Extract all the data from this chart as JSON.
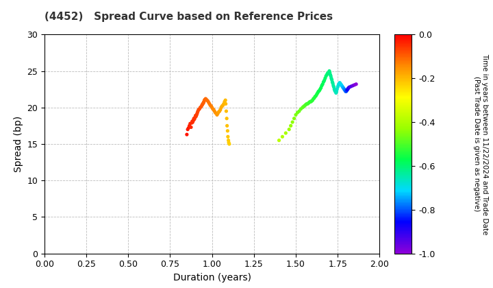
{
  "title": "(4452)   Spread Curve based on Reference Prices",
  "xlabel": "Duration (years)",
  "ylabel": "Spread (bp)",
  "xlim": [
    0.0,
    2.0
  ],
  "ylim": [
    0.0,
    30.0
  ],
  "xticks": [
    0.0,
    0.25,
    0.5,
    0.75,
    1.0,
    1.25,
    1.5,
    1.75,
    2.0
  ],
  "yticks": [
    0,
    5,
    10,
    15,
    20,
    25,
    30
  ],
  "colorbar_label_line1": "Time in years between 11/22/2024 and Trade Date",
  "colorbar_label_line2": "(Past Trade Date is given as negative)",
  "cbar_vmin": -1.0,
  "cbar_vmax": 0.0,
  "cbar_ticks": [
    0.0,
    -0.2,
    -0.4,
    -0.6,
    -0.8,
    -1.0
  ],
  "scatter_data": [
    [
      0.85,
      16.3,
      -0.02
    ],
    [
      0.855,
      17.0,
      -0.025
    ],
    [
      0.86,
      17.2,
      -0.03
    ],
    [
      0.865,
      17.5,
      -0.035
    ],
    [
      0.87,
      17.8,
      -0.04
    ],
    [
      0.875,
      17.3,
      -0.04
    ],
    [
      0.88,
      17.9,
      -0.045
    ],
    [
      0.882,
      18.1,
      -0.046
    ],
    [
      0.885,
      18.0,
      -0.048
    ],
    [
      0.888,
      18.2,
      -0.049
    ],
    [
      0.89,
      18.3,
      -0.05
    ],
    [
      0.892,
      18.5,
      -0.052
    ],
    [
      0.895,
      18.4,
      -0.054
    ],
    [
      0.898,
      18.6,
      -0.056
    ],
    [
      0.9,
      18.7,
      -0.058
    ],
    [
      0.902,
      18.9,
      -0.06
    ],
    [
      0.905,
      18.8,
      -0.062
    ],
    [
      0.908,
      19.0,
      -0.065
    ],
    [
      0.91,
      19.1,
      -0.067
    ],
    [
      0.913,
      19.3,
      -0.069
    ],
    [
      0.916,
      19.5,
      -0.072
    ],
    [
      0.92,
      19.7,
      -0.075
    ],
    [
      0.925,
      19.8,
      -0.078
    ],
    [
      0.93,
      20.0,
      -0.082
    ],
    [
      0.935,
      20.1,
      -0.086
    ],
    [
      0.94,
      20.3,
      -0.09
    ],
    [
      0.942,
      20.4,
      -0.092
    ],
    [
      0.945,
      20.5,
      -0.094
    ],
    [
      0.948,
      20.6,
      -0.096
    ],
    [
      0.95,
      20.7,
      -0.098
    ],
    [
      0.952,
      20.8,
      -0.1
    ],
    [
      0.955,
      21.0,
      -0.102
    ],
    [
      0.958,
      21.1,
      -0.104
    ],
    [
      0.962,
      21.2,
      -0.107
    ],
    [
      0.966,
      21.1,
      -0.11
    ],
    [
      0.97,
      21.0,
      -0.113
    ],
    [
      0.975,
      20.9,
      -0.116
    ],
    [
      0.98,
      20.7,
      -0.12
    ],
    [
      0.985,
      20.5,
      -0.124
    ],
    [
      0.99,
      20.3,
      -0.128
    ],
    [
      0.995,
      20.2,
      -0.132
    ],
    [
      1.0,
      20.0,
      -0.136
    ],
    [
      1.005,
      19.8,
      -0.14
    ],
    [
      1.01,
      19.7,
      -0.144
    ],
    [
      1.015,
      19.5,
      -0.148
    ],
    [
      1.02,
      19.3,
      -0.152
    ],
    [
      1.025,
      19.2,
      -0.156
    ],
    [
      1.03,
      19.0,
      -0.16
    ],
    [
      1.035,
      19.2,
      -0.164
    ],
    [
      1.04,
      19.4,
      -0.168
    ],
    [
      1.045,
      19.5,
      -0.172
    ],
    [
      1.05,
      19.7,
      -0.176
    ],
    [
      1.055,
      20.0,
      -0.18
    ],
    [
      1.06,
      20.2,
      -0.184
    ],
    [
      1.065,
      20.3,
      -0.188
    ],
    [
      1.07,
      20.5,
      -0.192
    ],
    [
      1.075,
      20.8,
      -0.196
    ],
    [
      1.08,
      21.0,
      -0.2
    ],
    [
      1.082,
      20.5,
      -0.202
    ],
    [
      1.085,
      19.5,
      -0.205
    ],
    [
      1.088,
      18.5,
      -0.208
    ],
    [
      1.09,
      17.5,
      -0.21
    ],
    [
      1.093,
      16.8,
      -0.213
    ],
    [
      1.095,
      16.0,
      -0.216
    ],
    [
      1.098,
      15.5,
      -0.22
    ],
    [
      1.1,
      15.2,
      -0.224
    ],
    [
      1.103,
      15.0,
      -0.228
    ],
    [
      1.4,
      15.5,
      -0.38
    ],
    [
      1.42,
      16.0,
      -0.395
    ],
    [
      1.44,
      16.5,
      -0.41
    ],
    [
      1.46,
      17.0,
      -0.425
    ],
    [
      1.47,
      17.5,
      -0.432
    ],
    [
      1.48,
      18.0,
      -0.44
    ],
    [
      1.49,
      18.5,
      -0.448
    ],
    [
      1.5,
      19.0,
      -0.455
    ],
    [
      1.51,
      19.3,
      -0.462
    ],
    [
      1.52,
      19.5,
      -0.47
    ],
    [
      1.53,
      19.8,
      -0.478
    ],
    [
      1.54,
      20.0,
      -0.485
    ],
    [
      1.545,
      20.1,
      -0.488
    ],
    [
      1.55,
      20.2,
      -0.492
    ],
    [
      1.555,
      20.3,
      -0.496
    ],
    [
      1.56,
      20.4,
      -0.5
    ],
    [
      1.565,
      20.5,
      -0.504
    ],
    [
      1.57,
      20.5,
      -0.508
    ],
    [
      1.575,
      20.6,
      -0.512
    ],
    [
      1.58,
      20.7,
      -0.516
    ],
    [
      1.585,
      20.8,
      -0.52
    ],
    [
      1.59,
      20.8,
      -0.524
    ],
    [
      1.595,
      20.9,
      -0.528
    ],
    [
      1.6,
      21.0,
      -0.532
    ],
    [
      1.605,
      21.2,
      -0.536
    ],
    [
      1.61,
      21.3,
      -0.54
    ],
    [
      1.615,
      21.5,
      -0.544
    ],
    [
      1.62,
      21.6,
      -0.548
    ],
    [
      1.625,
      21.8,
      -0.552
    ],
    [
      1.63,
      22.0,
      -0.556
    ],
    [
      1.635,
      22.2,
      -0.56
    ],
    [
      1.64,
      22.3,
      -0.564
    ],
    [
      1.645,
      22.5,
      -0.568
    ],
    [
      1.65,
      22.7,
      -0.572
    ],
    [
      1.655,
      23.0,
      -0.576
    ],
    [
      1.66,
      23.2,
      -0.58
    ],
    [
      1.665,
      23.5,
      -0.584
    ],
    [
      1.67,
      23.7,
      -0.588
    ],
    [
      1.675,
      24.0,
      -0.592
    ],
    [
      1.68,
      24.3,
      -0.596
    ],
    [
      1.685,
      24.5,
      -0.6
    ],
    [
      1.69,
      24.7,
      -0.604
    ],
    [
      1.695,
      24.8,
      -0.608
    ],
    [
      1.7,
      25.0,
      -0.612
    ],
    [
      1.703,
      24.8,
      -0.615
    ],
    [
      1.706,
      24.5,
      -0.618
    ],
    [
      1.709,
      24.3,
      -0.622
    ],
    [
      1.712,
      24.0,
      -0.625
    ],
    [
      1.715,
      23.8,
      -0.628
    ],
    [
      1.718,
      23.5,
      -0.632
    ],
    [
      1.721,
      23.3,
      -0.636
    ],
    [
      1.724,
      23.0,
      -0.64
    ],
    [
      1.727,
      22.8,
      -0.644
    ],
    [
      1.73,
      22.5,
      -0.648
    ],
    [
      1.733,
      22.3,
      -0.652
    ],
    [
      1.736,
      22.2,
      -0.656
    ],
    [
      1.74,
      22.0,
      -0.66
    ],
    [
      1.743,
      22.2,
      -0.664
    ],
    [
      1.746,
      22.5,
      -0.668
    ],
    [
      1.75,
      22.8,
      -0.672
    ],
    [
      1.753,
      23.0,
      -0.676
    ],
    [
      1.756,
      23.2,
      -0.68
    ],
    [
      1.759,
      23.3,
      -0.684
    ],
    [
      1.762,
      23.4,
      -0.688
    ],
    [
      1.765,
      23.3,
      -0.692
    ],
    [
      1.768,
      23.2,
      -0.696
    ],
    [
      1.771,
      23.1,
      -0.7
    ],
    [
      1.774,
      23.0,
      -0.71
    ],
    [
      1.777,
      22.9,
      -0.72
    ],
    [
      1.78,
      22.8,
      -0.73
    ],
    [
      1.783,
      22.7,
      -0.74
    ],
    [
      1.786,
      22.6,
      -0.75
    ],
    [
      1.789,
      22.5,
      -0.76
    ],
    [
      1.792,
      22.4,
      -0.77
    ],
    [
      1.795,
      22.3,
      -0.78
    ],
    [
      1.798,
      22.2,
      -0.79
    ],
    [
      1.8,
      22.2,
      -0.8
    ],
    [
      1.803,
      22.3,
      -0.82
    ],
    [
      1.806,
      22.4,
      -0.84
    ],
    [
      1.809,
      22.5,
      -0.86
    ],
    [
      1.812,
      22.6,
      -0.88
    ],
    [
      1.815,
      22.7,
      -0.9
    ],
    [
      1.82,
      22.8,
      -0.92
    ],
    [
      1.83,
      22.9,
      -0.94
    ],
    [
      1.84,
      23.0,
      -0.96
    ],
    [
      1.85,
      23.1,
      -0.98
    ],
    [
      1.86,
      23.2,
      -1.0
    ]
  ]
}
